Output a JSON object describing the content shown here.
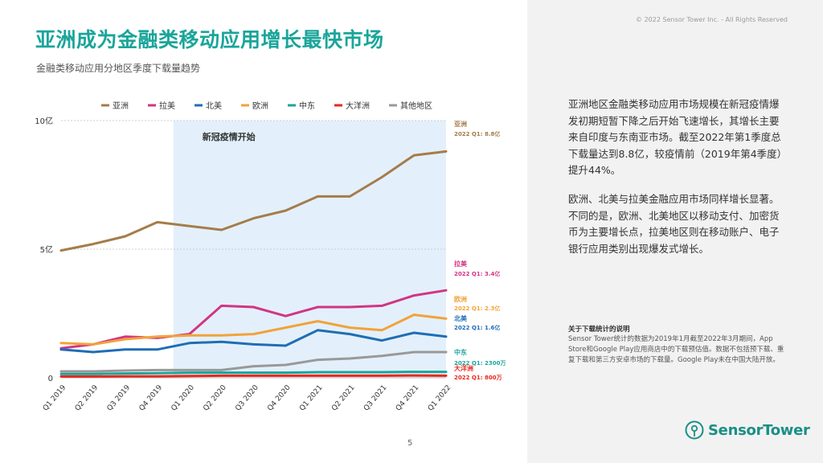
{
  "page": {
    "title": "亚洲成为金融类移动应用增长最快市场",
    "subtitle": "金融类移动应用分地区季度下载量趋势",
    "copyright": "© 2022 Sensor Tower Inc. - All Rights Reserved",
    "page_number": "5",
    "logo_text": "SensorTower"
  },
  "commentary": {
    "paragraph1": "亚洲地区金融类移动应用市场规模在新冠疫情爆发初期短暂下降之后开始飞速增长，其增长主要来自印度与东南亚市场。截至2022年第1季度总下载量达到8.8亿，较疫情前（2019年第4季度）提升44%。",
    "paragraph2": "欧洲、北美与拉美金融应用市场同样增长显著。不同的是，欧洲、北美地区以移动支付、加密货币为主要增长点，拉美地区则在移动账户、电子银行应用类别出现爆发式增长。",
    "note_title": "关于下载统计的说明",
    "note_body": "Sensor Tower统计的数据为2019年1月截至2022年3月期间，App Store和Google Play应用商店中的下载预估值。数据不包括预下载、重复下载和第三方安卓市场的下载量。Google Play未在中国大陆开放。"
  },
  "chart_data": {
    "type": "line",
    "title": "金融类移动应用分地区季度下载量趋势",
    "unit": "亿",
    "ylim": [
      0,
      10
    ],
    "yticks": [
      {
        "value": 0,
        "label": "0"
      },
      {
        "value": 5,
        "label": "5亿"
      },
      {
        "value": 10,
        "label": "10亿"
      }
    ],
    "categories": [
      "Q1 2019",
      "Q2 2019",
      "Q3 2019",
      "Q4 2019",
      "Q1 2020",
      "Q2 2020",
      "Q3 2020",
      "Q4 2020",
      "Q1 2021",
      "Q2 2021",
      "Q3 2021",
      "Q4 2021",
      "Q1 2022"
    ],
    "shaded_region": {
      "start": "Q4 2019",
      "end": "Q1 2022",
      "label": "新冠疫情开始",
      "color": "#e3f0fb"
    },
    "series": [
      {
        "name": "亚洲",
        "color": "#a57c4a",
        "values": [
          4.95,
          5.2,
          5.5,
          6.05,
          5.9,
          5.75,
          6.2,
          6.5,
          7.05,
          7.05,
          7.8,
          8.65,
          8.8
        ],
        "end_label": "亚洲",
        "end_value_label": "2022 Q1: 8.8亿"
      },
      {
        "name": "拉美",
        "color": "#d23584",
        "values": [
          1.15,
          1.3,
          1.6,
          1.55,
          1.7,
          2.8,
          2.75,
          2.4,
          2.75,
          2.75,
          2.8,
          3.2,
          3.4
        ],
        "end_label": "拉美",
        "end_value_label": "2022 Q1: 3.4亿"
      },
      {
        "name": "北美",
        "color": "#1f6db5",
        "values": [
          1.1,
          1.0,
          1.1,
          1.1,
          1.35,
          1.4,
          1.3,
          1.25,
          1.85,
          1.7,
          1.45,
          1.75,
          1.6
        ],
        "end_label": "北美",
        "end_value_label": "2022 Q1: 1.6亿"
      },
      {
        "name": "欧洲",
        "color": "#f2a23a",
        "values": [
          1.35,
          1.3,
          1.5,
          1.6,
          1.65,
          1.65,
          1.7,
          1.95,
          2.2,
          1.95,
          1.85,
          2.45,
          2.3
        ],
        "end_label": "欧洲",
        "end_value_label": "2022 Q1: 2.3亿"
      },
      {
        "name": "中东",
        "color": "#1aa59a",
        "values": [
          0.15,
          0.15,
          0.17,
          0.18,
          0.2,
          0.2,
          0.2,
          0.2,
          0.22,
          0.22,
          0.22,
          0.23,
          0.23
        ],
        "end_label": "中东",
        "end_value_label": "2022 Q1: 2300万"
      },
      {
        "name": "大洋洲",
        "color": "#e8271c",
        "values": [
          0.05,
          0.05,
          0.06,
          0.06,
          0.07,
          0.08,
          0.08,
          0.08,
          0.08,
          0.08,
          0.08,
          0.09,
          0.08
        ],
        "end_label": "大洋洲",
        "end_value_label": "2022 Q1: 800万"
      },
      {
        "name": "其他地区",
        "color": "#999999",
        "values": [
          0.25,
          0.25,
          0.28,
          0.3,
          0.3,
          0.3,
          0.45,
          0.5,
          0.7,
          0.75,
          0.85,
          1.0,
          1.0
        ],
        "end_label": "",
        "end_value_label": ""
      }
    ]
  },
  "colors": {
    "title_teal": "#1aa59a",
    "right_panel_bg": "#f2f2f2",
    "logo_teal": "#1a8f86"
  }
}
